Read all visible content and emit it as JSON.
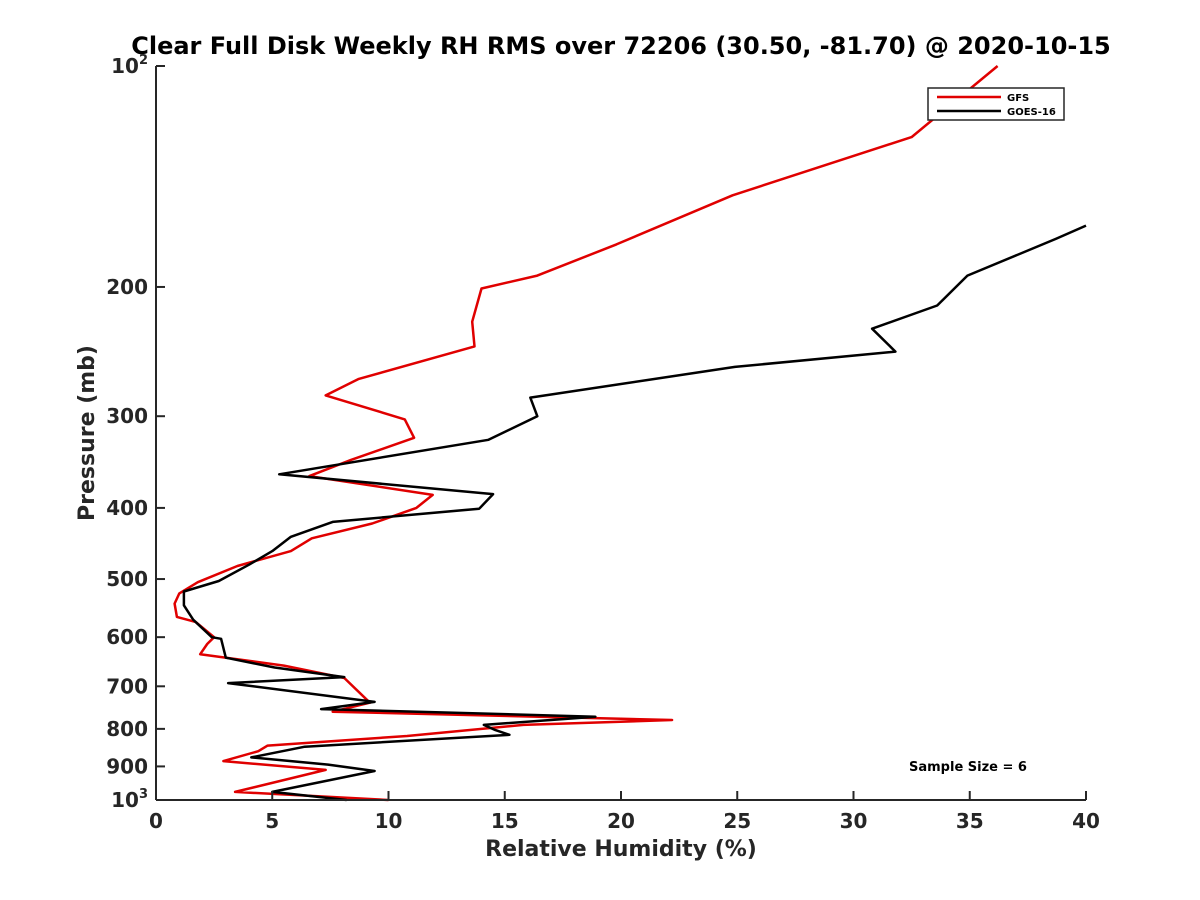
{
  "chart_data": {
    "type": "line",
    "title": "Clear Full Disk Weekly RH RMS over 72206 (30.50, -81.70) @ 2020-10-15",
    "xlabel": "Relative Humidity (%)",
    "ylabel": "Pressure (mb)",
    "xlim": [
      0,
      40
    ],
    "ylim": [
      1000,
      100
    ],
    "y_scale": "log",
    "y_reversed": true,
    "grid": false,
    "legend_position": "top-right",
    "annotation": "Sample Size = 6",
    "x_ticks": [
      {
        "value": 0,
        "label": "0"
      },
      {
        "value": 5,
        "label": "5"
      },
      {
        "value": 10,
        "label": "10"
      },
      {
        "value": 15,
        "label": "15"
      },
      {
        "value": 20,
        "label": "20"
      },
      {
        "value": 25,
        "label": "25"
      },
      {
        "value": 30,
        "label": "30"
      },
      {
        "value": 35,
        "label": "35"
      },
      {
        "value": 40,
        "label": "40"
      }
    ],
    "y_ticks": [
      {
        "value": 100,
        "base": "10",
        "exp": "2"
      },
      {
        "value": 200,
        "base": "200",
        "exp": ""
      },
      {
        "value": 300,
        "base": "300",
        "exp": ""
      },
      {
        "value": 400,
        "base": "400",
        "exp": ""
      },
      {
        "value": 500,
        "base": "500",
        "exp": ""
      },
      {
        "value": 600,
        "base": "600",
        "exp": ""
      },
      {
        "value": 700,
        "base": "700",
        "exp": ""
      },
      {
        "value": 800,
        "base": "800",
        "exp": ""
      },
      {
        "value": 900,
        "base": "900",
        "exp": ""
      },
      {
        "value": 1000,
        "base": "10",
        "exp": "3"
      }
    ],
    "series": [
      {
        "name": "GFS",
        "color": "#e00000",
        "points": [
          [
            36.2,
            100
          ],
          [
            32.5,
            125
          ],
          [
            24.8,
            150
          ],
          [
            19.8,
            175
          ],
          [
            16.4,
            193
          ],
          [
            14.0,
            201
          ],
          [
            13.6,
            223
          ],
          [
            13.7,
            241
          ],
          [
            8.7,
            267
          ],
          [
            7.3,
            281
          ],
          [
            10.7,
            303
          ],
          [
            11.1,
            321
          ],
          [
            8.4,
            344
          ],
          [
            6.6,
            362
          ],
          [
            11.9,
            384
          ],
          [
            11.2,
            400
          ],
          [
            9.3,
            420
          ],
          [
            6.7,
            440
          ],
          [
            5.8,
            458
          ],
          [
            3.5,
            480
          ],
          [
            1.8,
            505
          ],
          [
            1.0,
            523
          ],
          [
            0.8,
            540
          ],
          [
            0.9,
            563
          ],
          [
            1.7,
            572
          ],
          [
            2.5,
            600
          ],
          [
            2.2,
            613
          ],
          [
            1.9,
            633
          ],
          [
            5.5,
            656
          ],
          [
            8.1,
            682
          ],
          [
            9.2,
            737
          ],
          [
            7.6,
            758
          ],
          [
            22.2,
            778
          ],
          [
            15.8,
            790
          ],
          [
            10.8,
            818
          ],
          [
            4.8,
            843
          ],
          [
            4.4,
            858
          ],
          [
            2.9,
            885
          ],
          [
            7.3,
            910
          ],
          [
            3.4,
            975
          ],
          [
            10.0,
            1000
          ]
        ]
      },
      {
        "name": "GOES-16",
        "color": "#000000",
        "points": [
          [
            40.0,
            165
          ],
          [
            38.7,
            172
          ],
          [
            34.9,
            193
          ],
          [
            33.6,
            212
          ],
          [
            30.8,
            228
          ],
          [
            31.8,
            245
          ],
          [
            24.9,
            257
          ],
          [
            16.1,
            283
          ],
          [
            16.4,
            300
          ],
          [
            14.3,
            323
          ],
          [
            5.3,
            360
          ],
          [
            14.5,
            383
          ],
          [
            13.9,
            401
          ],
          [
            7.6,
            418
          ],
          [
            5.8,
            438
          ],
          [
            5.0,
            458
          ],
          [
            4.0,
            478
          ],
          [
            2.7,
            503
          ],
          [
            1.2,
            520
          ],
          [
            1.2,
            543
          ],
          [
            1.6,
            568
          ],
          [
            2.4,
            600
          ],
          [
            2.8,
            603
          ],
          [
            3.0,
            640
          ],
          [
            5.1,
            660
          ],
          [
            8.1,
            680
          ],
          [
            3.1,
            693
          ],
          [
            9.4,
            735
          ],
          [
            7.1,
            752
          ],
          [
            18.9,
            770
          ],
          [
            14.1,
            790
          ],
          [
            14.6,
            803
          ],
          [
            15.2,
            815
          ],
          [
            6.4,
            846
          ],
          [
            4.1,
            875
          ],
          [
            7.4,
            895
          ],
          [
            9.4,
            913
          ],
          [
            5.0,
            975
          ],
          [
            8.2,
            1000
          ]
        ]
      }
    ]
  }
}
